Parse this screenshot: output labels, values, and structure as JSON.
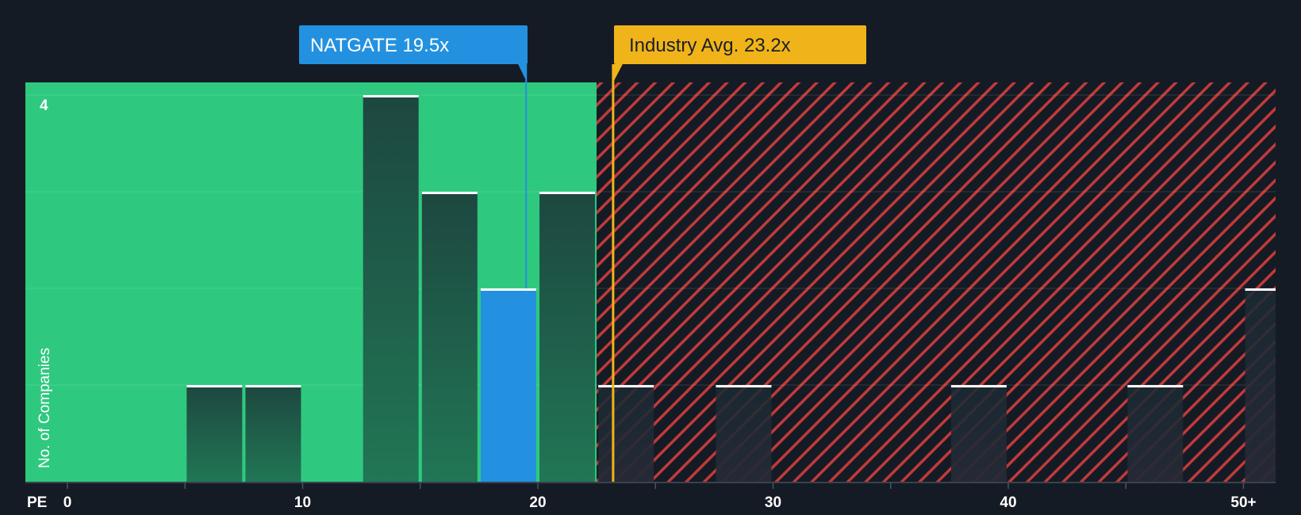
{
  "chart_data": {
    "type": "bar",
    "x_label": "PE",
    "y_label": "No. of Companies",
    "x_ticks": [
      "0",
      "10",
      "20",
      "30",
      "40",
      "50+"
    ],
    "y_tick_labels": [
      "4"
    ],
    "ylim": [
      0,
      4
    ],
    "grid": true,
    "bins": [
      {
        "x": 6.25,
        "value": 1
      },
      {
        "x": 8.75,
        "value": 1
      },
      {
        "x": 13.75,
        "value": 4
      },
      {
        "x": 16.25,
        "value": 3
      },
      {
        "x": 18.75,
        "value": 2,
        "highlight": true
      },
      {
        "x": 21.25,
        "value": 3
      },
      {
        "x": 23.75,
        "value": 1
      },
      {
        "x": 28.75,
        "value": 1
      },
      {
        "x": 38.75,
        "value": 1
      },
      {
        "x": 46.25,
        "value": 1
      },
      {
        "x": 51.25,
        "value": 2
      }
    ],
    "company": {
      "label": "NATGATE 19.5x",
      "value": 19.5
    },
    "industry_avg": {
      "label": "Industry Avg. 23.2x",
      "value": 23.2
    },
    "fair_zone_end": 22.5
  },
  "colors": {
    "background": "#151b24",
    "fair_zone": "#2ec97f",
    "bar": "#1e4a40",
    "company_bar": "#2391df",
    "company_callout": "#2391df",
    "industry_callout": "#f0b41a",
    "over_hatch": "#c23a3a"
  }
}
